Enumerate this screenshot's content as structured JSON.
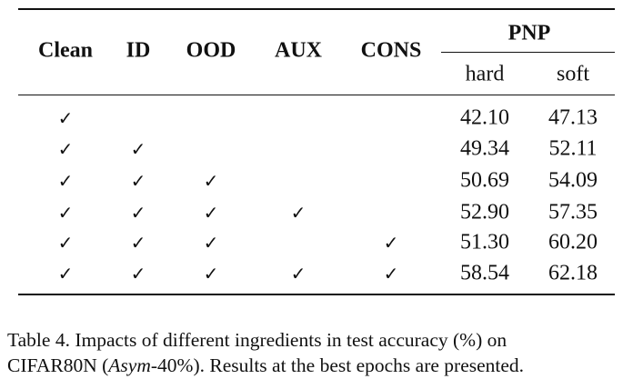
{
  "table": {
    "columns": [
      "Clean",
      "ID",
      "OOD",
      "AUX",
      "CONS"
    ],
    "group": {
      "label": "PNP",
      "subcolumns": [
        "hard",
        "soft"
      ]
    },
    "rows": [
      [
        "✓",
        null,
        null,
        null,
        null,
        "42.10",
        "47.13"
      ],
      [
        "✓",
        "✓",
        null,
        null,
        null,
        "49.34",
        "52.11"
      ],
      [
        "✓",
        "✓",
        "✓",
        null,
        null,
        "50.69",
        "54.09"
      ],
      [
        "✓",
        "✓",
        "✓",
        "✓",
        null,
        "52.90",
        "57.35"
      ],
      [
        "✓",
        "✓",
        "✓",
        null,
        "✓",
        "51.30",
        "60.20"
      ],
      [
        "✓",
        "✓",
        "✓",
        "✓",
        "✓",
        "58.54",
        "62.18"
      ]
    ]
  },
  "caption": {
    "line1": "Table 4. Impacts of different ingredients in test accuracy (%) on",
    "line2a": "CIFAR80N (",
    "line2b": "Asym",
    "line2c": "-40%). Results at the best epochs are presented."
  }
}
